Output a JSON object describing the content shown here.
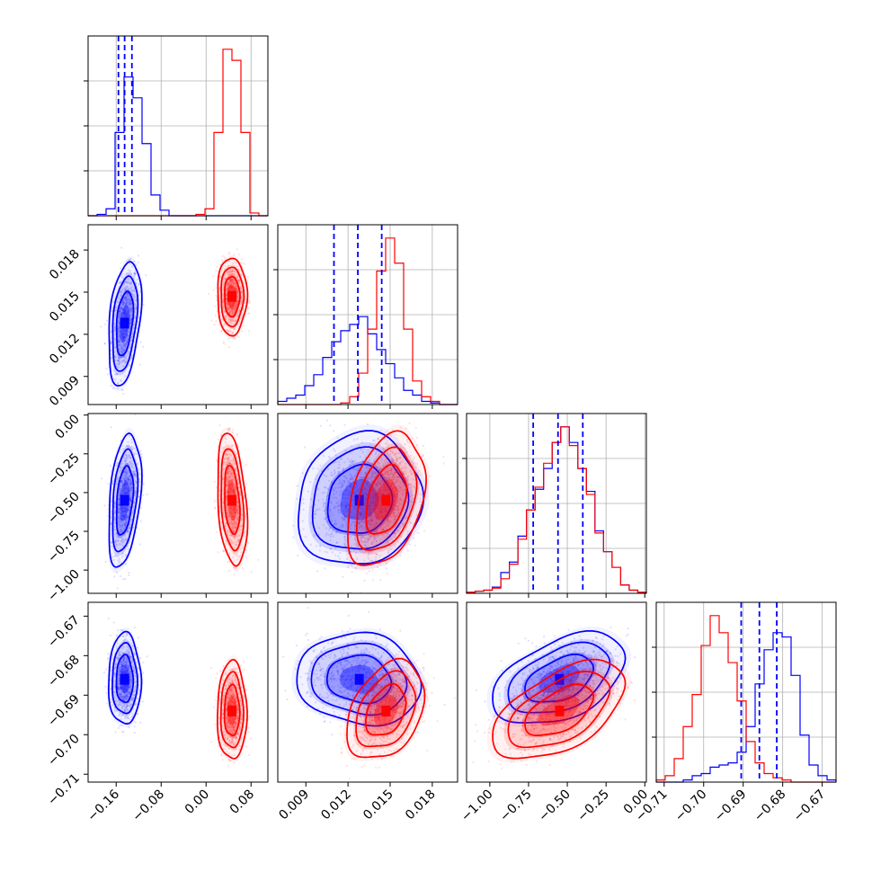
{
  "chart_data": {
    "type": "corner",
    "parameters": [
      {
        "range": [
          -0.21,
          0.11
        ],
        "ticks": [
          -0.16,
          -0.08,
          0.0,
          0.08
        ],
        "tick_labels": [
          "−0.16",
          "−0.08",
          "0.00",
          "0.08"
        ]
      },
      {
        "range": [
          0.007,
          0.0198
        ],
        "ticks": [
          0.009,
          0.012,
          0.015,
          0.018
        ],
        "tick_labels": [
          "0.009",
          "0.012",
          "0.015",
          "0.018"
        ]
      },
      {
        "range": [
          -1.15,
          0.01
        ],
        "ticks": [
          -1.0,
          -0.75,
          -0.5,
          -0.25,
          0.0
        ],
        "tick_labels": [
          "−1.00",
          "−0.75",
          "−0.50",
          "−0.25",
          "0.00"
        ]
      },
      {
        "range": [
          -0.712,
          -0.6665
        ],
        "ticks": [
          -0.71,
          -0.7,
          -0.69,
          -0.68,
          -0.67
        ],
        "tick_labels": [
          "−0.71",
          "−0.70",
          "−0.69",
          "−0.68",
          "−0.67"
        ]
      }
    ],
    "series": [
      {
        "color": "#0000ff",
        "mean": [
          -0.145,
          0.0128,
          -0.55,
          -0.686
        ],
        "sd": [
          0.0105,
          0.0016,
          0.155,
          0.0042
        ],
        "corr": {
          "0-1": 0.35,
          "0-2": 0.35,
          "1-2": 0.1,
          "2-3": 0.45,
          "1-3": -0.1,
          "0-3": 0.0
        }
      },
      {
        "color": "#ff0000",
        "mean": [
          0.046,
          0.0147,
          -0.55,
          -0.694
        ],
        "sd": [
          0.0095,
          0.001,
          0.155,
          0.0045
        ],
        "corr": {
          "0-1": 0.0,
          "0-2": -0.3,
          "1-2": 0.35,
          "2-3": 0.55,
          "1-3": 0.35,
          "0-3": 0.0
        }
      }
    ],
    "quantiles_series": "blue",
    "quantiles": [
      [
        -0.156,
        -0.145,
        -0.132
      ],
      [
        0.011,
        0.0127,
        0.0144
      ],
      [
        -0.72,
        -0.56,
        -0.4
      ],
      [
        -0.6905,
        -0.6859,
        -0.6815
      ]
    ],
    "histograms": [
      {
        "blue": [
          0,
          1,
          5,
          60,
          100,
          85,
          52,
          15,
          4,
          0,
          0,
          0,
          0,
          0,
          0,
          0,
          0,
          0,
          0,
          0
        ],
        "red": [
          0,
          0,
          0,
          0,
          0,
          0,
          0,
          0,
          0,
          0,
          0,
          0,
          1,
          5,
          60,
          120,
          112,
          60,
          2,
          0
        ]
      },
      {
        "blue": [
          2,
          4,
          6,
          12,
          19,
          30,
          40,
          47,
          51,
          56,
          45,
          35,
          26,
          17,
          9,
          6,
          2,
          1,
          0,
          0
        ],
        "red": [
          0,
          0,
          0,
          0,
          0,
          0,
          0,
          1,
          5,
          20,
          48,
          85,
          106,
          90,
          48,
          15,
          5,
          2,
          0,
          0
        ]
      },
      {
        "blue": [
          1,
          2,
          3,
          6,
          20,
          30,
          55,
          80,
          100,
          120,
          145,
          160,
          145,
          120,
          98,
          60,
          40,
          25,
          8,
          3,
          1
        ],
        "red": [
          1,
          2,
          3,
          5,
          14,
          28,
          52,
          80,
          102,
          125,
          145,
          160,
          142,
          120,
          95,
          58,
          40,
          25,
          8,
          3,
          1
        ]
      },
      {
        "blue": [
          0,
          0,
          0,
          1,
          3,
          4,
          7,
          8,
          9,
          14,
          26,
          46,
          62,
          70,
          68,
          50,
          22,
          8,
          3,
          1
        ],
        "red": [
          1,
          3,
          11,
          26,
          41,
          64,
          78,
          70,
          56,
          38,
          19,
          9,
          4,
          2,
          1,
          0,
          0,
          0,
          0,
          0
        ]
      }
    ]
  }
}
